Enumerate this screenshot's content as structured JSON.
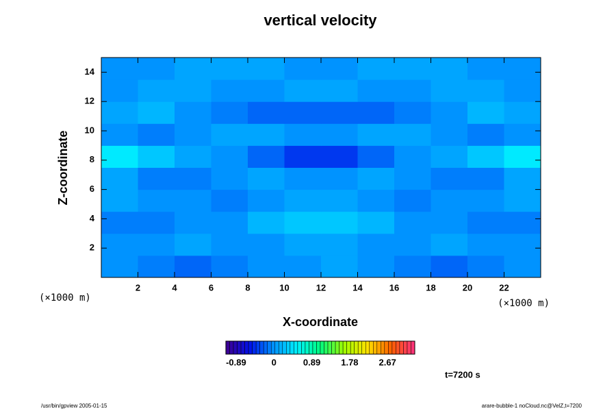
{
  "chart_data": {
    "type": "contour",
    "title": "vertical velocity",
    "xlabel": "X-coordinate",
    "ylabel": "Z-coordinate",
    "x_unit_label": "(×1000 m)",
    "y_unit_label": "(×1000 m)",
    "time_label": "t=7200 s",
    "footer_left": "/usr/bin/gpview 2005-01-15",
    "footer_right": "arare-bubble-1 noCloud.nc@VelZ,t=7200",
    "xlim": [
      0,
      24
    ],
    "ylim": [
      0,
      15
    ],
    "xticks": [
      2,
      4,
      6,
      8,
      10,
      12,
      14,
      16,
      18,
      20,
      22
    ],
    "yticks": [
      2,
      4,
      6,
      8,
      10,
      12,
      14
    ],
    "x": [
      1,
      3,
      5,
      7,
      9,
      11,
      13,
      15,
      17,
      19,
      21,
      23
    ],
    "y": [
      0.75,
      2.25,
      3.75,
      5.25,
      6.75,
      8.25,
      9.75,
      11.25,
      12.75,
      14.25
    ],
    "z": [
      [
        0.0,
        -0.1,
        -0.2,
        -0.1,
        0.0,
        0.0,
        0.1,
        0.0,
        -0.1,
        -0.2,
        -0.1,
        0.0
      ],
      [
        0.0,
        0.0,
        0.1,
        0.0,
        0.0,
        0.1,
        0.1,
        0.0,
        0.0,
        0.1,
        0.0,
        0.0
      ],
      [
        -0.1,
        -0.1,
        0.0,
        0.0,
        0.2,
        0.3,
        0.3,
        0.2,
        0.0,
        0.0,
        -0.1,
        -0.1
      ],
      [
        0.1,
        0.0,
        0.0,
        -0.1,
        0.0,
        0.1,
        0.1,
        0.0,
        -0.1,
        0.0,
        0.0,
        0.1
      ],
      [
        0.1,
        -0.1,
        -0.1,
        0.0,
        0.1,
        0.0,
        0.0,
        0.1,
        0.0,
        -0.1,
        -0.1,
        0.1
      ],
      [
        0.5,
        0.3,
        0.1,
        0.0,
        -0.2,
        -0.4,
        -0.4,
        -0.2,
        0.0,
        0.1,
        0.3,
        0.5
      ],
      [
        0.0,
        -0.1,
        0.0,
        0.1,
        0.1,
        0.0,
        0.0,
        0.1,
        0.1,
        0.0,
        -0.1,
        0.0
      ],
      [
        0.1,
        0.2,
        0.0,
        -0.1,
        -0.2,
        -0.2,
        -0.2,
        -0.2,
        -0.1,
        0.0,
        0.2,
        0.1
      ],
      [
        0.0,
        0.1,
        0.1,
        0.0,
        0.0,
        0.1,
        0.1,
        0.0,
        0.0,
        0.1,
        0.1,
        0.0
      ],
      [
        0.0,
        0.0,
        0.1,
        0.1,
        0.1,
        0.0,
        0.0,
        0.1,
        0.1,
        0.1,
        0.0,
        0.0
      ]
    ],
    "clim": [
      -1.13,
      3.31
    ],
    "cticks": [
      -0.89,
      0,
      0.89,
      1.78,
      2.67
    ],
    "colormap": [
      "#400090",
      "#0010e8",
      "#0090ff",
      "#00f0ff",
      "#00ff80",
      "#a0ff00",
      "#ffe000",
      "#ff6000",
      "#ff3080"
    ]
  }
}
